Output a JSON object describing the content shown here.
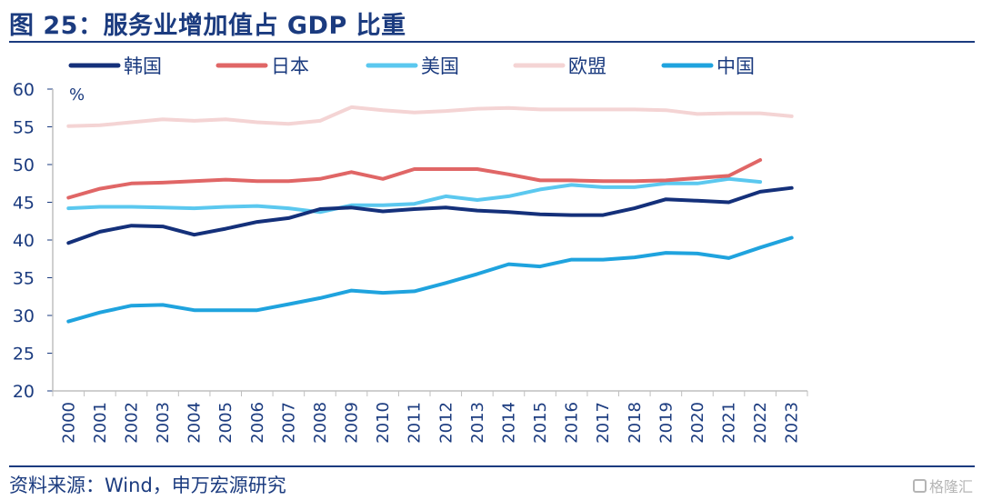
{
  "header": {
    "title": "图 25：服务业增加值占 GDP 比重"
  },
  "footer": {
    "source": "资料来源：Wind，申万宏源研究",
    "watermark": "格隆汇"
  },
  "chart_data": {
    "type": "line",
    "title": "图 25：服务业增加值占 GDP 比重",
    "ylabel": "%",
    "xlabel": "",
    "ylim": [
      20,
      60
    ],
    "yticks": [
      "20",
      "25",
      "30",
      "35",
      "40",
      "45",
      "50",
      "55",
      "60"
    ],
    "x": [
      "2000",
      "2001",
      "2002",
      "2003",
      "2004",
      "2005",
      "2006",
      "2007",
      "2008",
      "2009",
      "2010",
      "2011",
      "2012",
      "2013",
      "2014",
      "2015",
      "2016",
      "2017",
      "2018",
      "2019",
      "2020",
      "2021",
      "2022",
      "2023"
    ],
    "legend_position": "top",
    "series": [
      {
        "name": "韩国",
        "color": "#14307a",
        "values": [
          39.6,
          41.1,
          41.9,
          41.8,
          40.7,
          41.5,
          42.4,
          42.9,
          44.1,
          44.3,
          43.8,
          44.1,
          44.3,
          43.9,
          43.7,
          43.4,
          43.3,
          43.3,
          44.2,
          45.4,
          45.2,
          45.0,
          46.4,
          46.9
        ]
      },
      {
        "name": "日本",
        "color": "#e06666",
        "values": [
          45.6,
          46.8,
          47.5,
          47.6,
          47.8,
          48.0,
          47.8,
          47.8,
          48.1,
          49.0,
          48.1,
          49.4,
          49.4,
          49.4,
          48.7,
          47.9,
          47.9,
          47.8,
          47.8,
          47.9,
          48.2,
          48.5,
          50.6,
          null
        ]
      },
      {
        "name": "美国",
        "color": "#5bc8ef",
        "values": [
          44.2,
          44.4,
          44.4,
          44.3,
          44.2,
          44.4,
          44.5,
          44.2,
          43.7,
          44.6,
          44.6,
          44.8,
          45.8,
          45.3,
          45.8,
          46.7,
          47.3,
          47.0,
          47.0,
          47.5,
          47.5,
          48.1,
          47.7,
          null
        ]
      },
      {
        "name": "欧盟",
        "color": "#f4d4d4",
        "values": [
          55.1,
          55.2,
          55.6,
          56.0,
          55.8,
          56.0,
          55.6,
          55.4,
          55.8,
          57.6,
          57.2,
          56.9,
          57.1,
          57.4,
          57.5,
          57.3,
          57.3,
          57.3,
          57.3,
          57.2,
          56.7,
          56.8,
          56.8,
          56.4
        ]
      },
      {
        "name": "中国",
        "color": "#1fa3de",
        "values": [
          29.2,
          30.4,
          31.3,
          31.4,
          30.7,
          30.7,
          30.7,
          31.5,
          32.3,
          33.3,
          33.0,
          33.2,
          34.3,
          35.5,
          36.8,
          36.5,
          37.4,
          37.4,
          37.7,
          38.3,
          38.2,
          37.6,
          39.0,
          40.3
        ]
      }
    ]
  }
}
